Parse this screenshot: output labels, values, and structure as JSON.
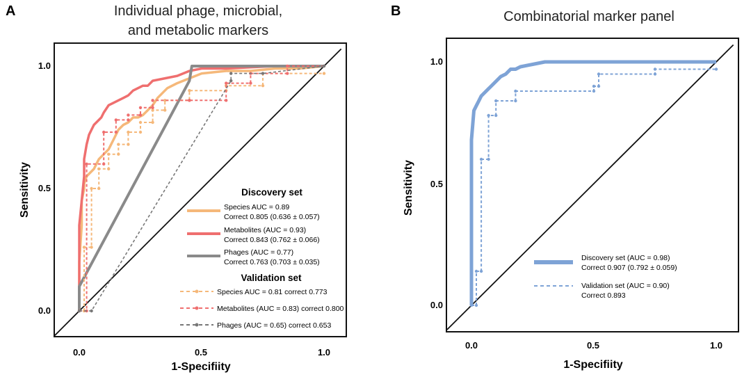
{
  "chart_data": [
    {
      "panel": "A",
      "type": "line",
      "title_lines": [
        "Individual phage, microbial,",
        "and metabolic markers"
      ],
      "xlabel": "1-Specifiity",
      "ylabel": "Sensitivity",
      "xlim": [
        -0.1,
        1.1
      ],
      "ylim": [
        -0.1,
        1.07
      ],
      "xticks": [
        "0.0",
        "0.5",
        "1.0"
      ],
      "yticks": [
        "0.0",
        "0.5",
        "1.0"
      ],
      "diagonal": true,
      "legend": {
        "discovery_title": "Discovery set",
        "validation_title": "Validation set",
        "discovery": [
          {
            "line1": "Species AUC = 0.89",
            "line2": "Correct 0.805 (0.636 ± 0.057)"
          },
          {
            "line1": "Metabolites (AUC = 0.93)",
            "line2": "Correct 0.843 (0.762 ± 0.066)"
          },
          {
            "line1": "Phages (AUC = 0.77)",
            "line2": "Correct 0.763 (0.703 ± 0.035)"
          }
        ],
        "validation": [
          {
            "label": "Species AUC = 0.81 correct 0.773"
          },
          {
            "label": "Metabolites (AUC = 0.83) correct 0.800"
          },
          {
            "label": "Phages (AUC = 0.65) correct 0.653"
          }
        ]
      },
      "series": [
        {
          "name": "Species (discovery)",
          "color": "#f5b87a",
          "style": "solid",
          "width": 3.5,
          "x": [
            0,
            0,
            0.01,
            0.01,
            0.02,
            0.02,
            0.03,
            0.04,
            0.05,
            0.06,
            0.07,
            0.08,
            0.1,
            0.12,
            0.14,
            0.16,
            0.18,
            0.2,
            0.22,
            0.24,
            0.26,
            0.28,
            0.3,
            0.32,
            0.34,
            0.36,
            0.4,
            0.45,
            0.5,
            0.6,
            0.7,
            0.8,
            0.9,
            1.0
          ],
          "y": [
            0,
            0.2,
            0.35,
            0.45,
            0.5,
            0.52,
            0.55,
            0.56,
            0.57,
            0.58,
            0.6,
            0.62,
            0.64,
            0.66,
            0.7,
            0.74,
            0.76,
            0.77,
            0.79,
            0.79,
            0.8,
            0.82,
            0.84,
            0.87,
            0.89,
            0.91,
            0.93,
            0.95,
            0.97,
            0.98,
            0.98,
            0.99,
            0.99,
            1.0
          ]
        },
        {
          "name": "Metabolites (discovery)",
          "color": "#ef6f6f",
          "style": "solid",
          "width": 3.5,
          "x": [
            0,
            0,
            0.01,
            0.02,
            0.02,
            0.03,
            0.04,
            0.05,
            0.06,
            0.07,
            0.08,
            0.09,
            0.1,
            0.12,
            0.14,
            0.16,
            0.18,
            0.2,
            0.22,
            0.24,
            0.26,
            0.28,
            0.3,
            0.35,
            0.4,
            0.45,
            0.5,
            0.6,
            0.8,
            1.0
          ],
          "y": [
            0,
            0.35,
            0.45,
            0.55,
            0.62,
            0.68,
            0.72,
            0.74,
            0.76,
            0.77,
            0.78,
            0.79,
            0.81,
            0.84,
            0.85,
            0.86,
            0.87,
            0.88,
            0.9,
            0.91,
            0.92,
            0.92,
            0.94,
            0.95,
            0.96,
            0.98,
            0.99,
            0.99,
            1.0,
            1.0
          ]
        },
        {
          "name": "Phages (discovery)",
          "color": "#8a8a8a",
          "style": "solid",
          "width": 4,
          "x": [
            0,
            0,
            0.45,
            0.46,
            0.5,
            0.6,
            1.0
          ],
          "y": [
            0,
            0.1,
            0.94,
            1.0,
            1.0,
            1.0,
            1.0
          ]
        },
        {
          "name": "Species (validation)",
          "color": "#f5b87a",
          "style": "dashed",
          "width": 2,
          "x": [
            0,
            0.02,
            0.02,
            0.05,
            0.05,
            0.08,
            0.08,
            0.12,
            0.12,
            0.16,
            0.16,
            0.2,
            0.2,
            0.25,
            0.25,
            0.3,
            0.3,
            0.35,
            0.35,
            0.45,
            0.45,
            0.6,
            0.6,
            0.75,
            0.75,
            1.0
          ],
          "y": [
            0,
            0,
            0.26,
            0.26,
            0.5,
            0.5,
            0.58,
            0.58,
            0.64,
            0.64,
            0.68,
            0.68,
            0.73,
            0.73,
            0.77,
            0.77,
            0.82,
            0.82,
            0.86,
            0.86,
            0.9,
            0.9,
            0.92,
            0.92,
            0.97,
            0.97
          ]
        },
        {
          "name": "Metabolites (validation)",
          "color": "#ef6f6f",
          "style": "dashed",
          "width": 2,
          "x": [
            0,
            0.03,
            0.03,
            0.1,
            0.1,
            0.15,
            0.15,
            0.2,
            0.2,
            0.25,
            0.25,
            0.3,
            0.3,
            0.45,
            0.45,
            0.6,
            0.6,
            0.7,
            0.7,
            0.85,
            0.85,
            1.0
          ],
          "y": [
            0,
            0,
            0.6,
            0.6,
            0.73,
            0.73,
            0.78,
            0.78,
            0.8,
            0.8,
            0.83,
            0.83,
            0.86,
            0.86,
            0.86,
            0.86,
            0.93,
            0.93,
            0.97,
            0.97,
            1.0,
            1.0
          ]
        },
        {
          "name": "Phages (validation)",
          "color": "#777777",
          "style": "dashed",
          "width": 1.6,
          "x": [
            0,
            0.05,
            0.62,
            0.62,
            0.75,
            1.0
          ],
          "y": [
            0,
            0,
            0.94,
            0.97,
            0.97,
            1.0
          ]
        }
      ]
    },
    {
      "panel": "B",
      "type": "line",
      "title_lines": [
        "Combinatorial marker panel"
      ],
      "xlabel": "1-Specifiity",
      "ylabel": "Sensitivity",
      "xlim": [
        -0.1,
        1.1
      ],
      "ylim": [
        -0.1,
        1.07
      ],
      "xticks": [
        "0.0",
        "0.5",
        "1.0"
      ],
      "yticks": [
        "0.0",
        "0.5",
        "1.0"
      ],
      "diagonal": true,
      "legend": {
        "items": [
          {
            "line1": "Discovery set (AUC = 0.98)",
            "line2": "Correct 0.907  (0.792 ± 0.059)"
          },
          {
            "line1": "Validation  set (AUC = 0.90)",
            "line2": "Correct 0.893"
          }
        ]
      },
      "series": [
        {
          "name": "Discovery set",
          "color": "#7ea3d6",
          "style": "solid",
          "width": 5,
          "x": [
            0,
            0,
            0.01,
            0.02,
            0.03,
            0.04,
            0.05,
            0.06,
            0.07,
            0.08,
            0.09,
            0.1,
            0.12,
            0.14,
            0.16,
            0.18,
            0.2,
            0.25,
            0.3,
            0.35,
            0.5,
            1.0
          ],
          "y": [
            0,
            0.68,
            0.8,
            0.82,
            0.84,
            0.86,
            0.87,
            0.88,
            0.89,
            0.9,
            0.91,
            0.92,
            0.94,
            0.95,
            0.97,
            0.97,
            0.98,
            0.99,
            1.0,
            1.0,
            1.0,
            1.0
          ],
          "style_detail": "thick"
        },
        {
          "name": "Validation set",
          "color": "#7ea3d6",
          "style": "dashed",
          "width": 2,
          "x": [
            0,
            0.02,
            0.02,
            0.04,
            0.04,
            0.07,
            0.07,
            0.1,
            0.1,
            0.18,
            0.18,
            0.5,
            0.5,
            0.52,
            0.52,
            0.75,
            0.75,
            1.0
          ],
          "y": [
            0,
            0,
            0.14,
            0.14,
            0.6,
            0.6,
            0.78,
            0.78,
            0.84,
            0.84,
            0.88,
            0.88,
            0.9,
            0.9,
            0.95,
            0.95,
            0.97,
            0.97
          ]
        }
      ]
    }
  ],
  "panel_labels": {
    "a": "A",
    "b": "B"
  }
}
